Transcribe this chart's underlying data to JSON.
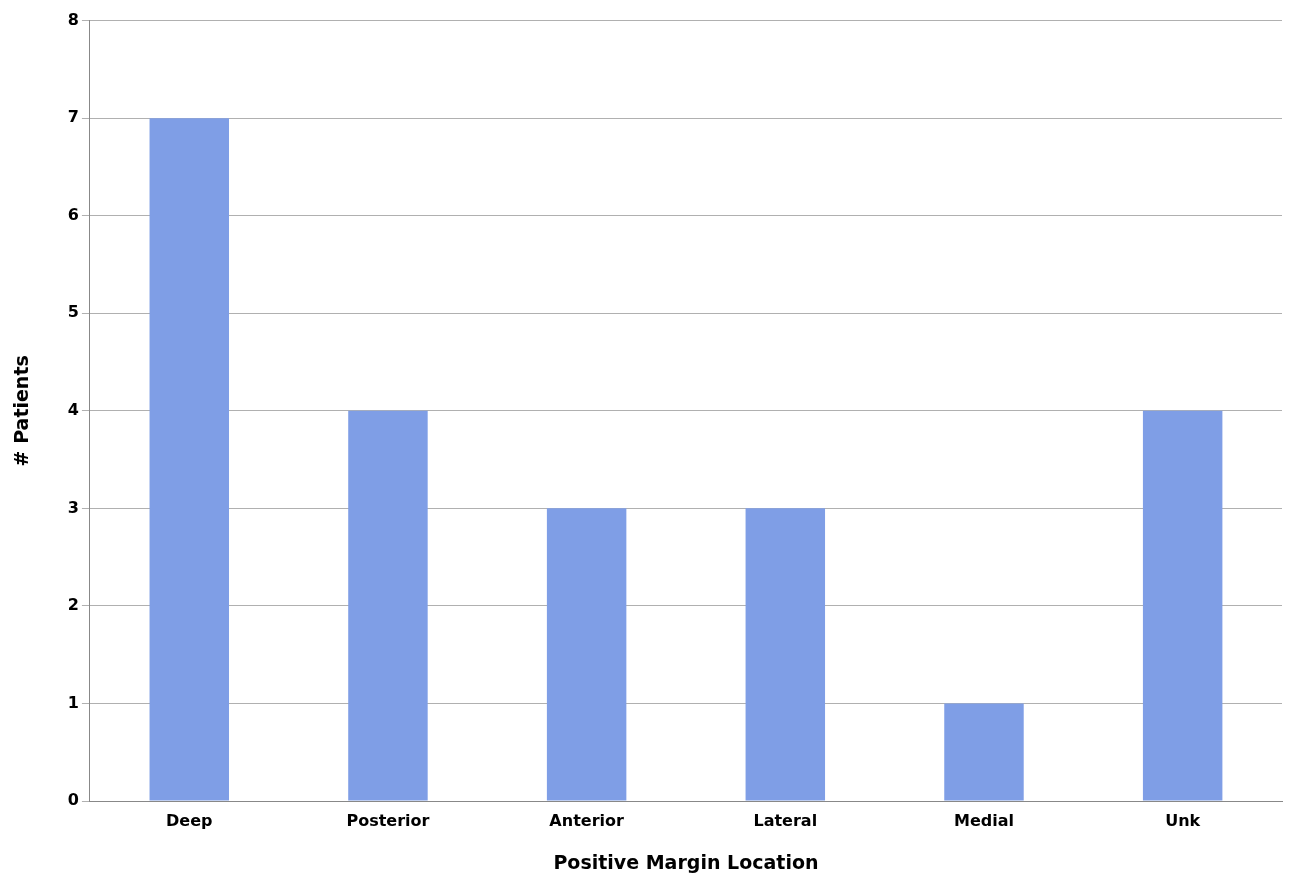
{
  "chart_data": {
    "type": "bar",
    "xlabel": "Positive Margin Location",
    "ylabel": "# Patients",
    "categories": [
      "Deep",
      "Posterior",
      "Anterior",
      "Lateral",
      "Medial",
      "Unk"
    ],
    "values": [
      7,
      4,
      3,
      3,
      1,
      4
    ],
    "color": "#7f9ee6",
    "ylim": [
      0,
      8
    ],
    "yticks": [
      0,
      1,
      2,
      3,
      4,
      5,
      6,
      7,
      8
    ],
    "grid": "y"
  }
}
